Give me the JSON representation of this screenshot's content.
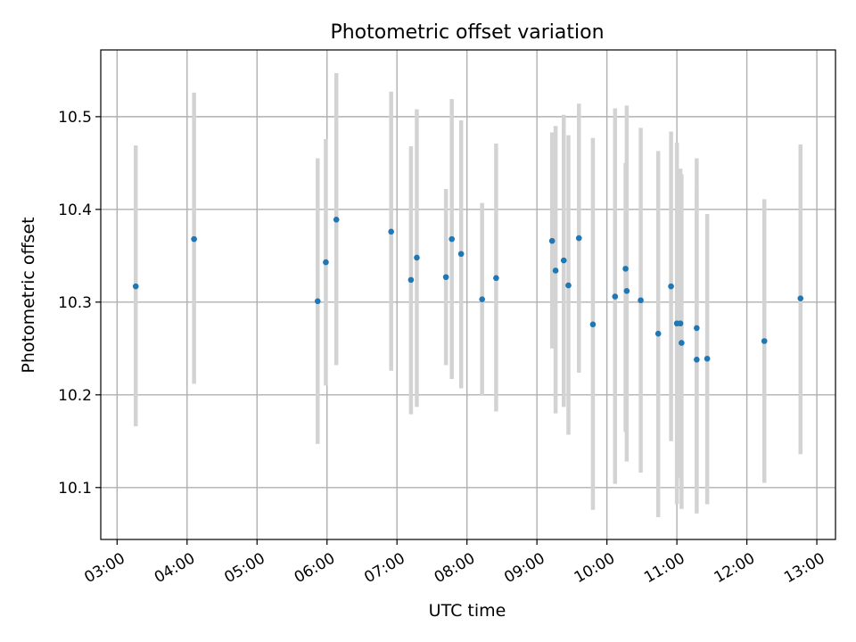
{
  "chart_data": {
    "type": "scatter",
    "title": "Photometric offset variation",
    "xlabel": "UTC time",
    "ylabel": "Photometric offset",
    "xlim": [
      "02:46",
      "13:16"
    ],
    "ylim": [
      10.044,
      10.572
    ],
    "grid": true,
    "xticks": [
      "03:00",
      "04:00",
      "05:00",
      "06:00",
      "07:00",
      "08:00",
      "09:00",
      "10:00",
      "11:00",
      "12:00",
      "13:00"
    ],
    "yticks": [
      10.1,
      10.2,
      10.3,
      10.4,
      10.5
    ],
    "ytick_labels": [
      "10.1",
      "10.2",
      "10.3",
      "10.4",
      "10.5"
    ],
    "marker_color": "#1f77b4",
    "errorbar_color": "#d3d3d3",
    "points": [
      {
        "t": "03:16",
        "y": 10.317,
        "lo": 10.166,
        "hi": 10.469
      },
      {
        "t": "04:06",
        "y": 10.368,
        "lo": 10.212,
        "hi": 10.526
      },
      {
        "t": "05:52",
        "y": 10.301,
        "lo": 10.147,
        "hi": 10.455
      },
      {
        "t": "05:59",
        "y": 10.343,
        "lo": 10.21,
        "hi": 10.476
      },
      {
        "t": "06:08",
        "y": 10.389,
        "lo": 10.232,
        "hi": 10.547
      },
      {
        "t": "06:55",
        "y": 10.376,
        "lo": 10.226,
        "hi": 10.527
      },
      {
        "t": "07:12",
        "y": 10.324,
        "lo": 10.179,
        "hi": 10.468
      },
      {
        "t": "07:17",
        "y": 10.348,
        "lo": 10.187,
        "hi": 10.508
      },
      {
        "t": "07:42",
        "y": 10.327,
        "lo": 10.232,
        "hi": 10.422
      },
      {
        "t": "07:47",
        "y": 10.368,
        "lo": 10.217,
        "hi": 10.519
      },
      {
        "t": "07:55",
        "y": 10.352,
        "lo": 10.207,
        "hi": 10.496
      },
      {
        "t": "08:13",
        "y": 10.303,
        "lo": 10.199,
        "hi": 10.407
      },
      {
        "t": "08:25",
        "y": 10.326,
        "lo": 10.182,
        "hi": 10.471
      },
      {
        "t": "09:13",
        "y": 10.366,
        "lo": 10.25,
        "hi": 10.483
      },
      {
        "t": "09:16",
        "y": 10.334,
        "lo": 10.18,
        "hi": 10.49
      },
      {
        "t": "09:23",
        "y": 10.345,
        "lo": 10.187,
        "hi": 10.502
      },
      {
        "t": "09:27",
        "y": 10.318,
        "lo": 10.157,
        "hi": 10.48
      },
      {
        "t": "09:36",
        "y": 10.369,
        "lo": 10.224,
        "hi": 10.514
      },
      {
        "t": "09:48",
        "y": 10.276,
        "lo": 10.076,
        "hi": 10.477
      },
      {
        "t": "10:07",
        "y": 10.306,
        "lo": 10.104,
        "hi": 10.509
      },
      {
        "t": "10:16",
        "y": 10.336,
        "lo": 10.16,
        "hi": 10.45
      },
      {
        "t": "10:17",
        "y": 10.312,
        "lo": 10.128,
        "hi": 10.512
      },
      {
        "t": "10:29",
        "y": 10.302,
        "lo": 10.116,
        "hi": 10.488
      },
      {
        "t": "10:44",
        "y": 10.266,
        "lo": 10.068,
        "hi": 10.463
      },
      {
        "t": "10:55",
        "y": 10.317,
        "lo": 10.15,
        "hi": 10.484
      },
      {
        "t": "11:00",
        "y": 10.277,
        "lo": 10.082,
        "hi": 10.472
      },
      {
        "t": "11:03",
        "y": 10.277,
        "lo": 10.11,
        "hi": 10.444
      },
      {
        "t": "11:04",
        "y": 10.256,
        "lo": 10.077,
        "hi": 10.438
      },
      {
        "t": "11:17",
        "y": 10.272,
        "lo": 10.1,
        "hi": 10.455
      },
      {
        "t": "11:17",
        "y": 10.238,
        "lo": 10.072,
        "hi": 10.42
      },
      {
        "t": "11:26",
        "y": 10.239,
        "lo": 10.082,
        "hi": 10.395
      },
      {
        "t": "12:15",
        "y": 10.258,
        "lo": 10.105,
        "hi": 10.411
      },
      {
        "t": "12:46",
        "y": 10.304,
        "lo": 10.136,
        "hi": 10.47
      }
    ]
  }
}
